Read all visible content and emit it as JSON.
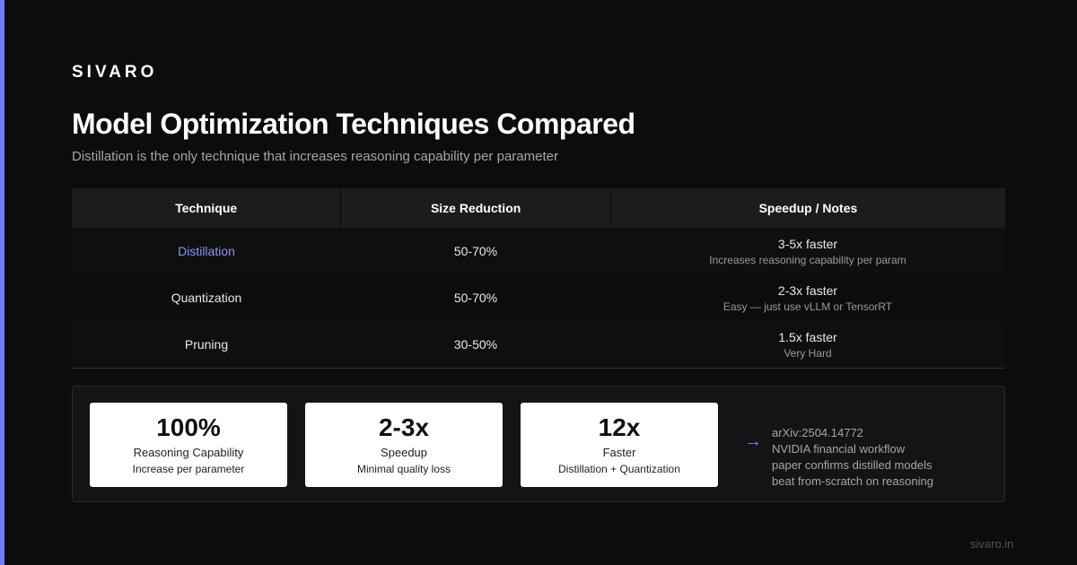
{
  "brand": "SIVARO",
  "title": "Model Optimization Techniques Compared",
  "subtitle": "Distillation is the only technique that increases reasoning capability per parameter",
  "table": {
    "header": [
      "Technique",
      "Size Reduction",
      "Speedup / Notes"
    ],
    "rows": [
      {
        "technique": "Distillation",
        "size": "50-70%",
        "speedup": "3-5x faster",
        "note": "Increases reasoning capability per param"
      },
      {
        "technique": "Quantization",
        "size": "50-70%",
        "speedup": "2-3x faster",
        "note": "Easy — just use vLLM or TensorRT"
      },
      {
        "technique": "Pruning",
        "size": "30-50%",
        "speedup": "1.5x faster",
        "note": "Very Hard"
      }
    ]
  },
  "stats": [
    {
      "value": "100%",
      "label": "Reasoning Capability",
      "sub": "Increase per parameter"
    },
    {
      "value": "2-3x",
      "label": "Speedup",
      "sub": "Minimal quality loss"
    },
    {
      "value": "12x",
      "label": "Faster",
      "sub": "Distillation + Quantization"
    }
  ],
  "arrow": "→",
  "note": [
    "arXiv:2504.14772",
    "NVIDIA financial workflow",
    "paper confirms distilled models",
    "beat from-scratch on reasoning"
  ],
  "footer": "sivaro.in"
}
